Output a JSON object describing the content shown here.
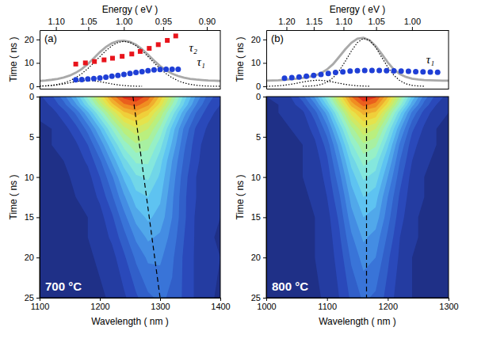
{
  "chart_data": [
    {
      "type": "line",
      "panel": "(a)",
      "ylabel": "Time ( ns )",
      "x2label": "Energy ( eV )",
      "xlim": [
        1100,
        1400
      ],
      "ylim": [
        -1,
        24
      ],
      "yticks": [
        0,
        10,
        20
      ],
      "x2lim": [
        1.127,
        0.886
      ],
      "x2ticks": [
        {
          "value": 1.1,
          "label": "1.10"
        },
        1.05,
        {
          "value": 1,
          "label": "1.00"
        },
        0.95,
        {
          "value": 0.9,
          "label": "0.90"
        }
      ],
      "series": [
        {
          "type": "line",
          "line_style": "solid",
          "color": "#a9a9a9",
          "x": [
            1100,
            1110,
            1120,
            1130,
            1140,
            1150,
            1160,
            1170,
            1180,
            1190,
            1200,
            1210,
            1220,
            1230,
            1240,
            1250,
            1260,
            1270,
            1280,
            1290,
            1300,
            1310,
            1320,
            1330,
            1340,
            1350,
            1360,
            1370,
            1380,
            1390,
            1400
          ],
          "values": [
            2.3,
            2.5,
            2.8,
            3.2,
            3.8,
            4.6,
            5.8,
            7.4,
            9.5,
            12.0,
            14.6,
            16.8,
            18.4,
            19.3,
            19.5,
            19.0,
            17.8,
            15.9,
            13.5,
            11.0,
            8.7,
            6.8,
            5.4,
            4.4,
            3.7,
            3.2,
            2.9,
            2.7,
            2.5,
            2.4,
            2.3
          ]
        },
        {
          "type": "line",
          "line_style": "dotted",
          "color": "#000000",
          "x": [
            1100,
            1110,
            1120,
            1130,
            1140,
            1150,
            1160,
            1170,
            1180,
            1190,
            1200,
            1210,
            1220,
            1230,
            1240,
            1250,
            1260,
            1270,
            1280,
            1290,
            1300,
            1310,
            1320,
            1330,
            1340,
            1350,
            1360,
            1370,
            1380,
            1390,
            1400
          ],
          "values": [
            0.12,
            0.24,
            0.47,
            0.84,
            1.45,
            2.37,
            3.68,
            5.42,
            7.58,
            10.06,
            12.7,
            15.22,
            17.31,
            18.71,
            19.2,
            18.71,
            17.31,
            15.22,
            12.7,
            10.06,
            7.58,
            5.42,
            3.68,
            2.37,
            1.45,
            0.84,
            0.47,
            0.24,
            0.12,
            0.06,
            0.03
          ]
        },
        {
          "type": "line",
          "line_style": "dotted",
          "color": "#000000",
          "x": [
            1100,
            1110,
            1120,
            1130,
            1140,
            1150,
            1160,
            1170,
            1180,
            1190,
            1200,
            1210,
            1220,
            1230,
            1240,
            1250,
            1260,
            1270
          ],
          "values": [
            0.07,
            0.16,
            0.34,
            0.62,
            1.03,
            1.52,
            2.0,
            2.37,
            2.5,
            2.37,
            2.0,
            1.52,
            1.03,
            0.62,
            0.34,
            0.16,
            0.07,
            0.03
          ]
        },
        {
          "type": "scatter",
          "marker": "square",
          "color": "#e8141c",
          "x": [
            1160,
            1176,
            1191,
            1207,
            1221,
            1237,
            1253,
            1267,
            1282,
            1297,
            1312,
            1326
          ],
          "values": [
            9.5,
            10.0,
            10.6,
            11.3,
            12.0,
            12.8,
            13.8,
            14.9,
            16.2,
            17.8,
            19.6,
            21.5
          ]
        },
        {
          "type": "scatter",
          "marker": "circle",
          "color": "#1f3fd6",
          "x": [
            1160,
            1170,
            1180,
            1190,
            1200,
            1210,
            1220,
            1230,
            1240,
            1250,
            1260,
            1270,
            1280,
            1290,
            1300,
            1310,
            1320,
            1330
          ],
          "values": [
            2.8,
            2.9,
            3.1,
            3.3,
            3.6,
            3.9,
            4.3,
            4.7,
            5.1,
            5.5,
            5.9,
            6.3,
            6.7,
            7.0,
            7.2,
            7.3,
            7.3,
            7.3
          ]
        }
      ],
      "annotations": [
        {
          "text": "τ₂",
          "x": 1355,
          "y": 16
        },
        {
          "text": "τ₁",
          "x": 1368,
          "y": 10
        }
      ]
    },
    {
      "type": "heatmap",
      "xlabel": "Wavelength ( nm )",
      "ylabel": "Time ( ns )",
      "xlim": [
        1100,
        1400
      ],
      "xticks": [
        1100,
        1200,
        1300,
        1400
      ],
      "ylim": [
        0,
        25
      ],
      "yticks": [
        0,
        5,
        10,
        15,
        20,
        25
      ],
      "zlim": [
        0,
        1
      ],
      "x": [
        1100,
        1120,
        1140,
        1160,
        1180,
        1200,
        1220,
        1240,
        1260,
        1280,
        1300,
        1320,
        1340,
        1360,
        1380,
        1400
      ],
      "y": [
        0,
        1,
        2,
        4,
        6,
        8,
        10,
        12.5,
        15,
        17.5,
        20,
        25
      ],
      "z": [
        [
          0.09,
          0.14,
          0.23,
          0.35,
          0.52,
          0.7,
          0.87,
          0.97,
          1.0,
          0.93,
          0.79,
          0.61,
          0.43,
          0.29,
          0.18,
          0.11
        ],
        [
          0.07,
          0.11,
          0.18,
          0.29,
          0.44,
          0.61,
          0.78,
          0.89,
          0.92,
          0.86,
          0.73,
          0.55,
          0.39,
          0.25,
          0.15,
          0.1
        ],
        [
          0.06,
          0.08,
          0.13,
          0.21,
          0.34,
          0.5,
          0.66,
          0.79,
          0.83,
          0.77,
          0.64,
          0.48,
          0.32,
          0.2,
          0.12,
          0.08
        ],
        [
          0.04,
          0.05,
          0.08,
          0.13,
          0.22,
          0.35,
          0.5,
          0.63,
          0.69,
          0.65,
          0.54,
          0.38,
          0.24,
          0.14,
          0.09,
          0.06
        ],
        [
          0.04,
          0.05,
          0.06,
          0.09,
          0.15,
          0.26,
          0.39,
          0.52,
          0.59,
          0.57,
          0.47,
          0.34,
          0.21,
          0.12,
          0.07,
          0.05
        ],
        [
          0.04,
          0.04,
          0.05,
          0.07,
          0.11,
          0.19,
          0.31,
          0.43,
          0.51,
          0.51,
          0.42,
          0.3,
          0.19,
          0.11,
          0.07,
          0.05
        ],
        [
          0.04,
          0.04,
          0.04,
          0.06,
          0.08,
          0.15,
          0.24,
          0.36,
          0.44,
          0.46,
          0.39,
          0.28,
          0.17,
          0.1,
          0.06,
          0.05
        ],
        [
          0.04,
          0.04,
          0.04,
          0.05,
          0.07,
          0.11,
          0.19,
          0.29,
          0.38,
          0.4,
          0.36,
          0.26,
          0.16,
          0.1,
          0.06,
          0.05
        ],
        [
          0.04,
          0.04,
          0.04,
          0.04,
          0.05,
          0.08,
          0.14,
          0.23,
          0.32,
          0.36,
          0.33,
          0.25,
          0.16,
          0.09,
          0.06,
          0.05
        ],
        [
          0.04,
          0.04,
          0.04,
          0.04,
          0.05,
          0.07,
          0.11,
          0.18,
          0.26,
          0.31,
          0.29,
          0.23,
          0.15,
          0.09,
          0.06,
          0.04
        ],
        [
          0.04,
          0.04,
          0.04,
          0.04,
          0.04,
          0.06,
          0.08,
          0.14,
          0.21,
          0.26,
          0.26,
          0.21,
          0.14,
          0.09,
          0.06,
          0.05
        ],
        [
          0.04,
          0.04,
          0.04,
          0.04,
          0.04,
          0.04,
          0.06,
          0.09,
          0.14,
          0.19,
          0.21,
          0.19,
          0.14,
          0.09,
          0.06,
          0.04
        ]
      ],
      "series": [
        {
          "type": "line",
          "line_style": "dashed",
          "color": "#000000",
          "x": [
            1255,
            1300
          ],
          "values": [
            0,
            25
          ]
        }
      ],
      "annotations": [
        {
          "text": "700 °C"
        }
      ]
    },
    {
      "type": "line",
      "panel": "(b)",
      "ylabel": "Time ( ns )",
      "x2label": "Energy ( eV )",
      "xlim": [
        1000,
        1300
      ],
      "ylim": [
        -1,
        24
      ],
      "yticks": [
        0,
        10,
        20
      ],
      "x2lim": [
        1.24,
        0.954
      ],
      "x2ticks": [
        {
          "value": 1.2,
          "label": "1.20"
        },
        1.15,
        {
          "value": 1.1,
          "label": "1.10"
        },
        1.05,
        {
          "value": 1,
          "label": "1.00"
        }
      ],
      "series": [
        {
          "type": "line",
          "line_style": "solid",
          "color": "#a9a9a9",
          "x": [
            1000,
            1010,
            1020,
            1030,
            1040,
            1050,
            1060,
            1070,
            1080,
            1090,
            1100,
            1110,
            1120,
            1130,
            1140,
            1150,
            1160,
            1170,
            1180,
            1190,
            1200,
            1210,
            1220,
            1230,
            1240,
            1250,
            1260,
            1270,
            1280,
            1290,
            1300
          ],
          "values": [
            2.4,
            2.5,
            2.6,
            2.8,
            3.0,
            3.3,
            3.6,
            4.0,
            4.6,
            5.6,
            7.2,
            9.5,
            12.6,
            15.8,
            18.6,
            20.3,
            20.7,
            19.6,
            17.2,
            13.8,
            10.2,
            7.2,
            5.2,
            4.0,
            3.3,
            2.9,
            2.7,
            2.6,
            2.5,
            2.4,
            2.4
          ]
        },
        {
          "type": "line",
          "line_style": "dotted",
          "color": "#000000",
          "x": [
            1060,
            1070,
            1080,
            1090,
            1100,
            1110,
            1120,
            1130,
            1140,
            1150,
            1160,
            1170,
            1180,
            1190,
            1200,
            1210,
            1220,
            1230,
            1240,
            1250,
            1260
          ],
          "values": [
            0.03,
            0.09,
            0.28,
            0.75,
            1.77,
            3.66,
            6.66,
            10.67,
            15.05,
            18.7,
            20.45,
            19.68,
            16.67,
            12.43,
            8.16,
            4.72,
            2.4,
            1.07,
            0.42,
            0.15,
            0.04
          ]
        },
        {
          "type": "line",
          "line_style": "dotted",
          "color": "#000000",
          "x": [
            1000,
            1010,
            1020,
            1030,
            1040,
            1050,
            1060,
            1070,
            1080,
            1090,
            1100,
            1110,
            1120,
            1130,
            1140,
            1150,
            1160,
            1170
          ],
          "values": [
            0.05,
            0.11,
            0.25,
            0.48,
            0.84,
            1.32,
            1.84,
            2.29,
            2.56,
            2.56,
            2.29,
            1.84,
            1.32,
            0.84,
            0.48,
            0.25,
            0.11,
            0.05
          ]
        },
        {
          "type": "scatter",
          "marker": "circle",
          "color": "#1f3fd6",
          "x": [
            1030,
            1042,
            1054,
            1066,
            1078,
            1090,
            1102,
            1114,
            1126,
            1138,
            1150,
            1162,
            1174,
            1186,
            1198,
            1210,
            1222,
            1234,
            1246,
            1258,
            1270,
            1282
          ],
          "values": [
            3.5,
            3.7,
            4.0,
            4.3,
            4.7,
            5.1,
            5.5,
            5.9,
            6.2,
            6.5,
            6.7,
            6.8,
            6.8,
            6.8,
            6.7,
            6.6,
            6.5,
            6.4,
            6.3,
            6.2,
            6.1,
            6.0
          ]
        }
      ],
      "annotations": [
        {
          "text": "τ₁",
          "x": 1270,
          "y": 11
        }
      ]
    },
    {
      "type": "heatmap",
      "xlabel": "Wavelength ( nm )",
      "ylabel": "Time ( ns )",
      "xlim": [
        1000,
        1300
      ],
      "xticks": [
        1000,
        1100,
        1200,
        1300
      ],
      "ylim": [
        0,
        25
      ],
      "yticks": [
        0,
        5,
        10,
        15,
        20,
        25
      ],
      "zlim": [
        0,
        1
      ],
      "x": [
        1000,
        1020,
        1040,
        1060,
        1080,
        1100,
        1120,
        1140,
        1160,
        1180,
        1200,
        1220,
        1240,
        1260,
        1280,
        1300
      ],
      "y": [
        0,
        1,
        2,
        4,
        6,
        8,
        10,
        12.5,
        15,
        17.5,
        20,
        25
      ],
      "z": [
        [
          0.05,
          0.06,
          0.1,
          0.18,
          0.31,
          0.49,
          0.71,
          0.9,
          1.0,
          0.96,
          0.81,
          0.6,
          0.39,
          0.23,
          0.13,
          0.08
        ],
        [
          0.04,
          0.05,
          0.08,
          0.13,
          0.24,
          0.41,
          0.62,
          0.82,
          0.92,
          0.88,
          0.73,
          0.52,
          0.32,
          0.18,
          0.1,
          0.06
        ],
        [
          0.04,
          0.05,
          0.06,
          0.09,
          0.18,
          0.32,
          0.52,
          0.72,
          0.82,
          0.79,
          0.62,
          0.42,
          0.24,
          0.13,
          0.07,
          0.05
        ],
        [
          0.04,
          0.04,
          0.05,
          0.07,
          0.12,
          0.23,
          0.4,
          0.58,
          0.69,
          0.65,
          0.49,
          0.31,
          0.16,
          0.09,
          0.05,
          0.04
        ],
        [
          0.04,
          0.04,
          0.04,
          0.05,
          0.09,
          0.17,
          0.32,
          0.49,
          0.59,
          0.56,
          0.41,
          0.24,
          0.12,
          0.07,
          0.05,
          0.04
        ],
        [
          0.04,
          0.04,
          0.04,
          0.05,
          0.07,
          0.14,
          0.27,
          0.42,
          0.52,
          0.48,
          0.35,
          0.2,
          0.1,
          0.06,
          0.04,
          0.04
        ],
        [
          0.04,
          0.04,
          0.04,
          0.05,
          0.06,
          0.12,
          0.23,
          0.37,
          0.46,
          0.43,
          0.3,
          0.17,
          0.08,
          0.05,
          0.04,
          0.04
        ],
        [
          0.04,
          0.04,
          0.04,
          0.04,
          0.06,
          0.1,
          0.19,
          0.32,
          0.4,
          0.37,
          0.25,
          0.14,
          0.07,
          0.05,
          0.04,
          0.04
        ],
        [
          0.04,
          0.04,
          0.04,
          0.04,
          0.05,
          0.08,
          0.16,
          0.28,
          0.35,
          0.33,
          0.22,
          0.12,
          0.06,
          0.04,
          0.04,
          0.04
        ],
        [
          0.04,
          0.04,
          0.04,
          0.04,
          0.05,
          0.07,
          0.14,
          0.24,
          0.31,
          0.28,
          0.19,
          0.1,
          0.06,
          0.04,
          0.04,
          0.04
        ],
        [
          0.04,
          0.04,
          0.04,
          0.04,
          0.05,
          0.07,
          0.12,
          0.21,
          0.27,
          0.25,
          0.16,
          0.09,
          0.05,
          0.04,
          0.04,
          0.04
        ],
        [
          0.04,
          0.04,
          0.04,
          0.04,
          0.04,
          0.06,
          0.1,
          0.16,
          0.21,
          0.19,
          0.13,
          0.07,
          0.05,
          0.04,
          0.04,
          0.04
        ]
      ],
      "series": [
        {
          "type": "line",
          "line_style": "dashed",
          "color": "#000000",
          "x": [
            1165,
            1165
          ],
          "values": [
            0,
            25
          ]
        }
      ],
      "annotations": [
        {
          "text": "800 °C"
        }
      ]
    }
  ]
}
